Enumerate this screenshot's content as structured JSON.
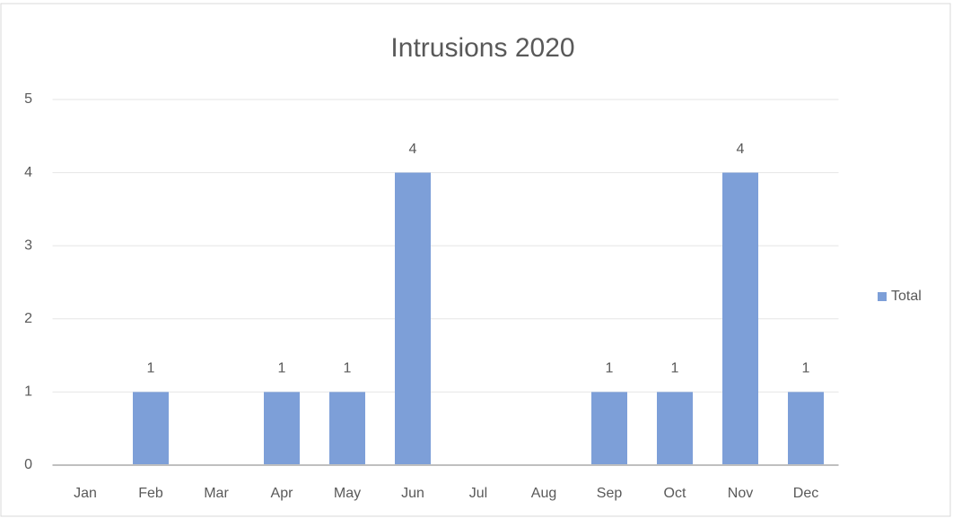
{
  "chart_data": {
    "type": "bar",
    "title": "Intrusions 2020",
    "categories": [
      "Jan",
      "Feb",
      "Mar",
      "Apr",
      "May",
      "Jun",
      "Jul",
      "Aug",
      "Sep",
      "Oct",
      "Nov",
      "Dec"
    ],
    "series": [
      {
        "name": "Total",
        "color": "#7d9fd8",
        "values": [
          null,
          1,
          null,
          1,
          1,
          4,
          null,
          null,
          1,
          1,
          4,
          1
        ]
      }
    ],
    "ylim": [
      0,
      5
    ],
    "yticks": [
      0,
      1,
      2,
      3,
      4,
      5
    ],
    "grid": true,
    "legend": "right"
  }
}
